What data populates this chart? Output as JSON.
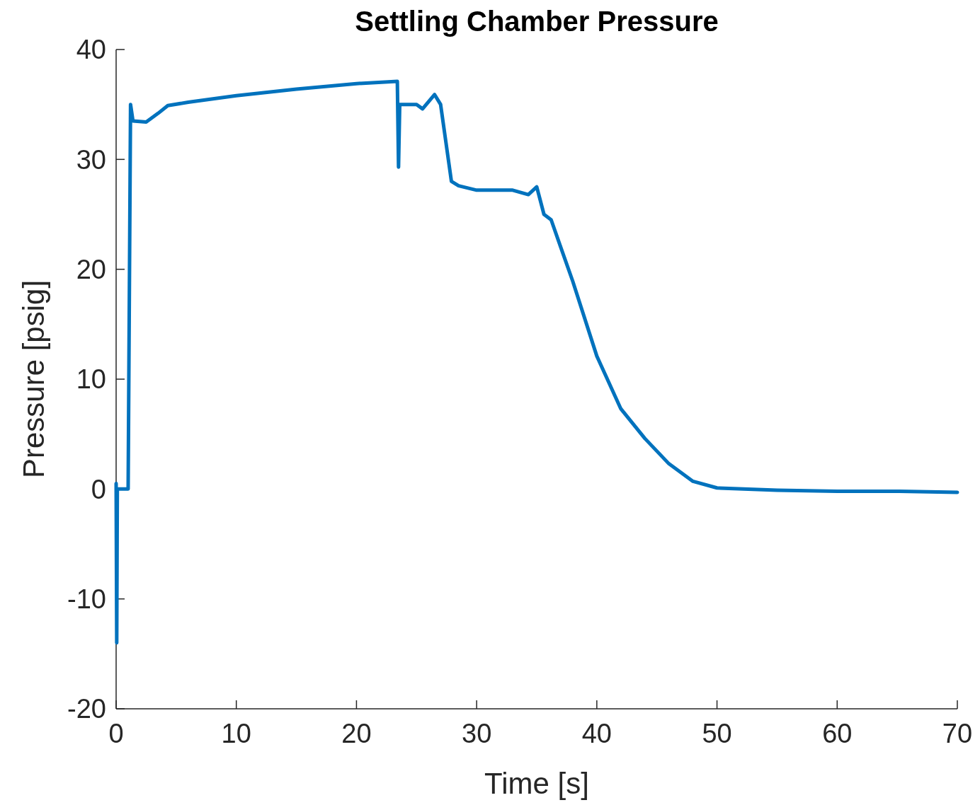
{
  "chart_data": {
    "type": "line",
    "title": "Settling Chamber Pressure",
    "xlabel": "Time [s]",
    "ylabel": "Pressure [psig]",
    "xlim": [
      0,
      70
    ],
    "xticks": [
      0,
      10,
      20,
      30,
      40,
      50,
      60,
      70
    ],
    "ylim": [
      -20,
      40
    ],
    "yticks": [
      -20,
      -10,
      0,
      10,
      20,
      30,
      40
    ],
    "grid": false,
    "series": [
      {
        "color": "#0072bd",
        "x": [
          0,
          0.05,
          0.1,
          1.0,
          1.2,
          1.4,
          2.5,
          3.5,
          4.3,
          6,
          10,
          15,
          20,
          23.4,
          23.5,
          23.6,
          25,
          25.5,
          26.5,
          27,
          27.9,
          28.5,
          30,
          33,
          34.3,
          35,
          35.6,
          36.2,
          37,
          38,
          40,
          42,
          44,
          46,
          48,
          50,
          55,
          60,
          65,
          70
        ],
        "values": [
          0.5,
          -14,
          0,
          0,
          35,
          33.5,
          33.4,
          34.2,
          34.9,
          35.2,
          35.8,
          36.4,
          36.9,
          37.1,
          29.3,
          35,
          35,
          34.6,
          35.9,
          35,
          28,
          27.6,
          27.2,
          27.2,
          26.8,
          27.5,
          25,
          24.5,
          22,
          18.9,
          12.1,
          7.3,
          4.6,
          2.3,
          0.7,
          0.1,
          -0.1,
          -0.2,
          -0.2,
          -0.3
        ]
      }
    ]
  }
}
